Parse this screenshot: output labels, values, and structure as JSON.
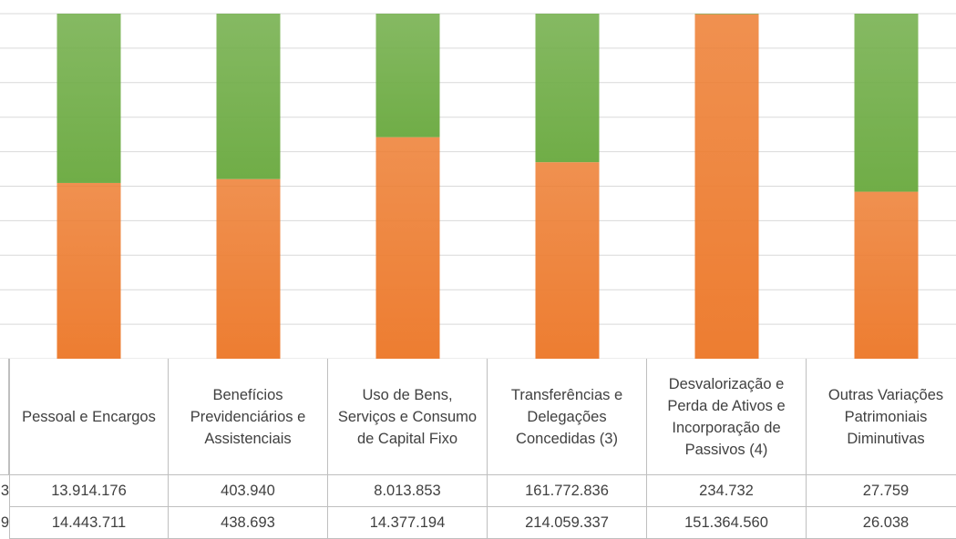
{
  "chart_data": {
    "type": "stacked_bar_100",
    "categories": [
      "Pessoal e Encargos",
      "Benefícios Previdenciários e Assistenciais",
      "Uso de Bens, Serviços e Consumo de Capital Fixo",
      "Transferências e Delegações Concedidas (3)",
      "Desvalorização e Perda de Ativos e Incorporação de Passivos (4)",
      "Outras Variações Patrimoniais Diminutivas"
    ],
    "series": [
      {
        "name": "3",
        "color": "#70ad47",
        "values": [
          13914176,
          403940,
          8013853,
          161772836,
          234732,
          27759
        ],
        "value_labels": [
          "13.914.176",
          "403.940",
          "8.013.853",
          "161.772.836",
          "234.732",
          "27.759"
        ]
      },
      {
        "name": "9",
        "color": "#ed7d31",
        "values": [
          14443711,
          438693,
          14377194,
          214059337,
          151364560,
          26038
        ],
        "value_labels": [
          "14.443.711",
          "438.693",
          "14.377.194",
          "214.059.337",
          "151.364.560",
          "26.038"
        ]
      }
    ],
    "stack_order": "bottom-last",
    "ylim": [
      0,
      100
    ],
    "yticks": [
      0,
      10,
      20,
      30,
      40,
      50,
      60,
      70,
      80,
      90,
      100
    ],
    "grid": true
  }
}
